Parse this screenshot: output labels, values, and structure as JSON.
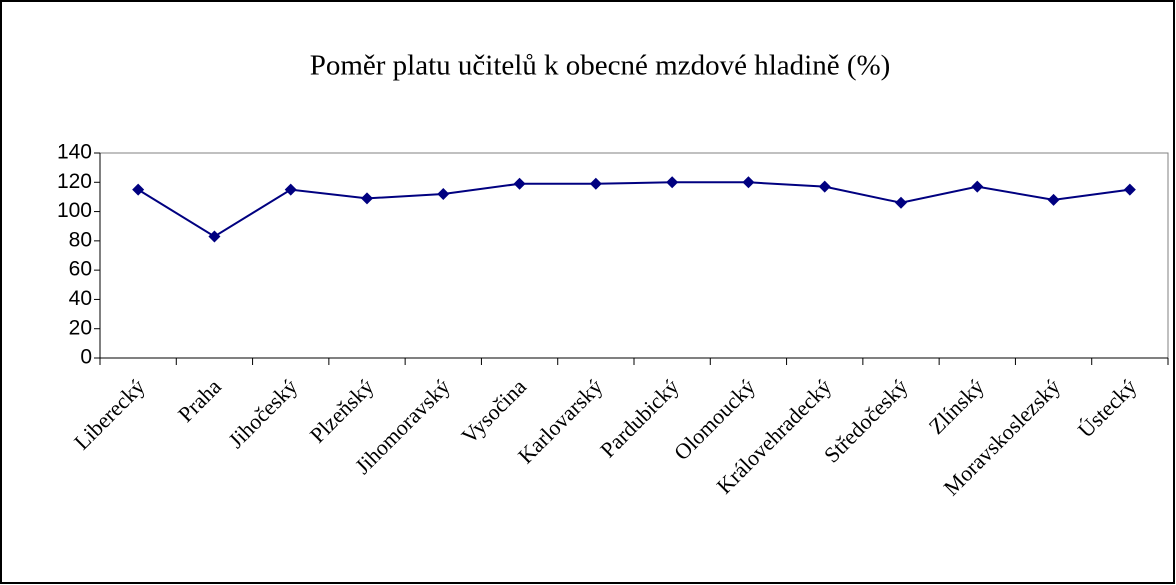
{
  "chart_data": {
    "type": "line",
    "title": "Poměr platu učitelů k obecné mzdové hladině (%)",
    "categories": [
      "Liberecký",
      "Praha",
      "Jihočeský",
      "Plzeňský",
      "Jihomoravský",
      "Vysočina",
      "Karlovarský",
      "Pardubický",
      "Olomoucký",
      "Královehradecký",
      "Středočeský",
      "Zlínský",
      "Moravskoslezský",
      "Ústecký"
    ],
    "series": [
      {
        "color": "#000080",
        "values": [
          115,
          83,
          115,
          109,
          112,
          119,
          119,
          120,
          120,
          117,
          106,
          117,
          108,
          115
        ]
      }
    ],
    "ylim": [
      0,
      140
    ],
    "yticks": [
      0,
      20,
      40,
      60,
      80,
      100,
      120,
      140
    ],
    "grid": false
  }
}
